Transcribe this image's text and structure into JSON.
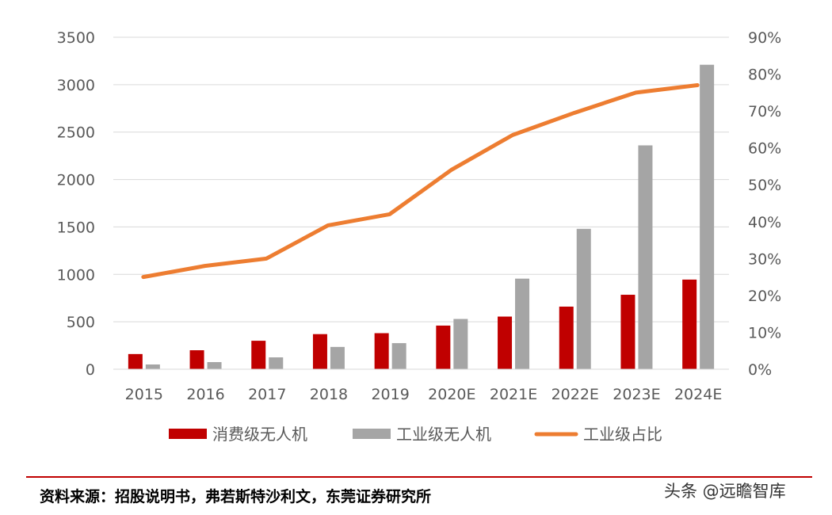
{
  "chart_data": {
    "type": "bar+line",
    "categories": [
      "2015",
      "2016",
      "2017",
      "2018",
      "2019",
      "2020E",
      "2021E",
      "2022E",
      "2023E",
      "2024E"
    ],
    "series": [
      {
        "name": "消费级无人机",
        "kind": "bar",
        "axis": "left",
        "color": "#c00000",
        "values": [
          160,
          200,
          300,
          370,
          380,
          460,
          555,
          660,
          785,
          945
        ]
      },
      {
        "name": "工业级无人机",
        "kind": "bar",
        "axis": "left",
        "color": "#a5a5a5",
        "values": [
          50,
          75,
          125,
          235,
          275,
          530,
          955,
          1480,
          2360,
          3210
        ]
      },
      {
        "name": "工业级占比",
        "kind": "line",
        "axis": "right",
        "color": "#ed7d31",
        "values": [
          0.25,
          0.28,
          0.3,
          0.39,
          0.42,
          0.54,
          0.635,
          0.695,
          0.75,
          0.77
        ]
      }
    ],
    "left_axis": {
      "min": 0,
      "max": 3500,
      "ticks": [
        "0",
        "500",
        "1000",
        "1500",
        "2000",
        "2500",
        "3000",
        "3500"
      ]
    },
    "right_axis": {
      "min": 0,
      "max": 0.9,
      "ticks": [
        "0%",
        "10%",
        "20%",
        "30%",
        "40%",
        "50%",
        "60%",
        "70%",
        "80%",
        "90%"
      ]
    },
    "gridlines": true,
    "legend_position": "bottom"
  },
  "source": "资料来源：招股说明书，弗若斯特沙利文，东莞证券研究所",
  "watermark": "头条 @远瞻智库"
}
